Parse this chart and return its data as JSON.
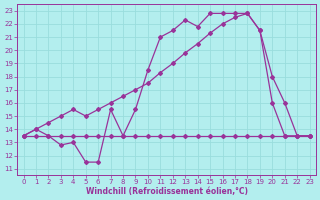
{
  "xlabel": "Windchill (Refroidissement éolien,°C)",
  "bg_color": "#b3eeee",
  "grid_color": "#99dddd",
  "line_color": "#993399",
  "xlim": [
    -0.5,
    23.5
  ],
  "ylim": [
    10.5,
    23.5
  ],
  "xticks": [
    0,
    1,
    2,
    3,
    4,
    5,
    6,
    7,
    8,
    9,
    10,
    11,
    12,
    13,
    14,
    15,
    16,
    17,
    18,
    19,
    20,
    21,
    22,
    23
  ],
  "yticks": [
    11,
    12,
    13,
    14,
    15,
    16,
    17,
    18,
    19,
    20,
    21,
    22,
    23
  ],
  "series1": {
    "x": [
      0,
      1,
      2,
      3,
      4,
      5,
      6,
      7,
      8,
      9,
      10,
      11,
      12,
      13,
      14,
      15,
      16,
      17,
      18,
      19,
      20,
      21,
      22,
      23
    ],
    "y": [
      13.5,
      13.5,
      13.5,
      13.5,
      13.5,
      13.5,
      13.5,
      13.5,
      13.5,
      13.5,
      13.5,
      13.5,
      13.5,
      13.5,
      13.5,
      13.5,
      13.5,
      13.5,
      13.5,
      13.5,
      13.5,
      13.5,
      13.5,
      13.5
    ]
  },
  "series2": {
    "x": [
      0,
      1,
      2,
      3,
      4,
      5,
      6,
      7,
      8,
      9,
      10,
      11,
      12,
      13,
      14,
      15,
      16,
      17,
      18,
      19,
      20,
      21,
      22,
      23
    ],
    "y": [
      13.5,
      14.0,
      13.5,
      12.8,
      13.0,
      11.5,
      11.5,
      15.5,
      13.5,
      15.5,
      18.5,
      21.0,
      21.5,
      22.3,
      21.8,
      22.8,
      22.8,
      22.8,
      22.8,
      21.5,
      18.0,
      16.0,
      13.5,
      13.5
    ]
  },
  "series3": {
    "x": [
      0,
      1,
      2,
      3,
      4,
      5,
      6,
      7,
      8,
      9,
      10,
      11,
      12,
      13,
      14,
      15,
      16,
      17,
      18,
      19,
      20,
      21,
      22,
      23
    ],
    "y": [
      13.5,
      14.0,
      14.5,
      15.0,
      15.5,
      15.0,
      15.5,
      16.0,
      16.5,
      17.0,
      17.5,
      18.3,
      19.0,
      19.8,
      20.5,
      21.3,
      22.0,
      22.5,
      22.8,
      21.5,
      16.0,
      13.5,
      13.5,
      13.5
    ]
  },
  "lw": 0.9,
  "ms": 2.0,
  "tick_fontsize": 5.0,
  "xlabel_fontsize": 5.5
}
